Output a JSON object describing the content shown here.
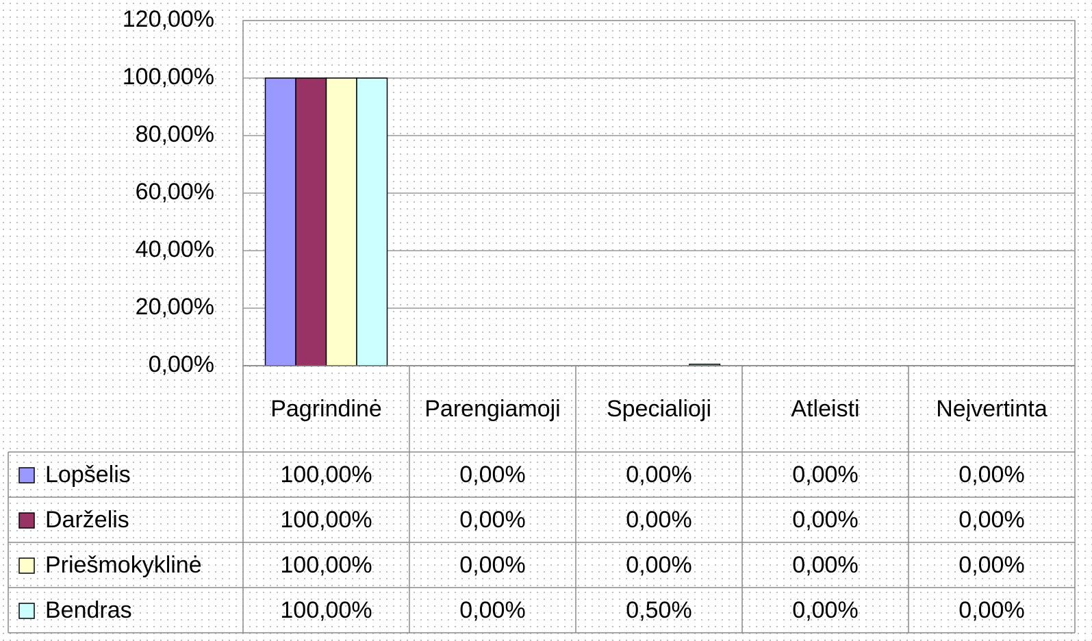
{
  "chart_data": {
    "type": "bar",
    "categories": [
      "Pagrindinė",
      "Parengiamoji",
      "Specialioji",
      "Atleisti",
      "Neįvertinta"
    ],
    "series": [
      {
        "name": "Lopšelis",
        "color": "#9999ff",
        "values": [
          100,
          0,
          0,
          0,
          0
        ],
        "value_labels": [
          "100,00%",
          "0,00%",
          "0,00%",
          "0,00%",
          "0,00%"
        ]
      },
      {
        "name": "Darželis",
        "color": "#993366",
        "values": [
          100,
          0,
          0,
          0,
          0
        ],
        "value_labels": [
          "100,00%",
          "0,00%",
          "0,00%",
          "0,00%",
          "0,00%"
        ]
      },
      {
        "name": "Priešmokyklinė",
        "color": "#ffffcc",
        "values": [
          100,
          0,
          0,
          0,
          0
        ],
        "value_labels": [
          "100,00%",
          "0,00%",
          "0,00%",
          "0,00%",
          "0,00%"
        ]
      },
      {
        "name": "Bendras",
        "color": "#ccffff",
        "values": [
          100,
          0,
          0.5,
          0,
          0
        ],
        "value_labels": [
          "100,00%",
          "0,00%",
          "0,50%",
          "0,00%",
          "0,00%"
        ]
      }
    ],
    "ylim": [
      0,
      120
    ],
    "yticks": [
      {
        "value": 0,
        "label": "0,00%"
      },
      {
        "value": 20,
        "label": "20,00%"
      },
      {
        "value": 40,
        "label": "40,00%"
      },
      {
        "value": 60,
        "label": "60,00%"
      },
      {
        "value": 80,
        "label": "80,00%"
      },
      {
        "value": 100,
        "label": "100,00%"
      },
      {
        "value": 120,
        "label": "120,00%"
      }
    ],
    "grid": true
  }
}
